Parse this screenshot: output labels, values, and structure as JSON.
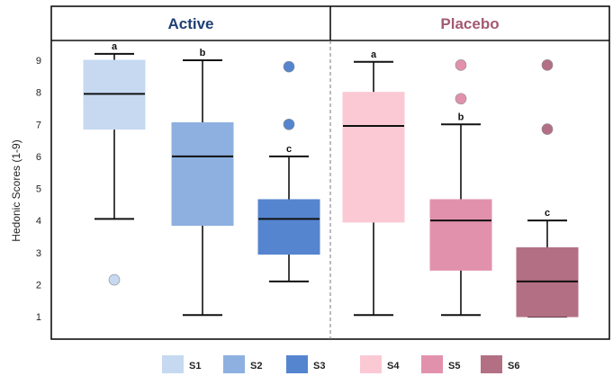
{
  "chart_data": {
    "type": "boxplot",
    "ylabel": "Hedonic Scores (1-9)",
    "ylim": [
      0.6,
      9.4
    ],
    "yticks": [
      1,
      2,
      3,
      4,
      5,
      6,
      7,
      8,
      9
    ],
    "grid": false,
    "legend_position": "bottom",
    "panels": [
      {
        "title": "Active",
        "title_color": "#1f3f73",
        "series": [
          {
            "name": "S1",
            "color": "#c6d9f1",
            "min": 4.05,
            "q1": 6.85,
            "median": 7.95,
            "q3": 9.0,
            "max": 9.2,
            "outliers": [
              2.15
            ],
            "sig": "a"
          },
          {
            "name": "S2",
            "color": "#8db0e0",
            "min": 1.05,
            "q1": 3.85,
            "median": 6.0,
            "q3": 7.05,
            "max": 9.0,
            "outliers": [],
            "sig": "b"
          },
          {
            "name": "S3",
            "color": "#5585cf",
            "min": 2.1,
            "q1": 2.95,
            "median": 4.05,
            "q3": 4.65,
            "max": 6.0,
            "outliers": [
              8.8,
              7.0
            ],
            "sig": "c"
          }
        ]
      },
      {
        "title": "Placebo",
        "title_color": "#a35a72",
        "series": [
          {
            "name": "S4",
            "color": "#fbc9d4",
            "min": 1.05,
            "q1": 3.95,
            "median": 6.95,
            "q3": 8.0,
            "max": 8.95,
            "outliers": [],
            "sig": "a"
          },
          {
            "name": "S5",
            "color": "#e291ac",
            "min": 1.05,
            "q1": 2.45,
            "median": 4.0,
            "q3": 4.65,
            "max": 7.0,
            "outliers": [
              8.85,
              7.8
            ],
            "sig": "b"
          },
          {
            "name": "S6",
            "color": "#b36f84",
            "min": 1.0,
            "q1": 1.0,
            "median": 2.1,
            "q3": 3.15,
            "max": 4.0,
            "outliers": [
              8.85,
              6.85
            ],
            "sig": "c"
          }
        ]
      }
    ]
  }
}
